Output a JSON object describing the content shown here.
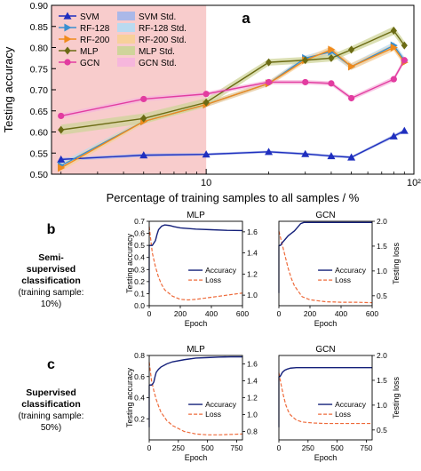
{
  "panel_a": {
    "letter": "a",
    "ylabel": "Testing accuracy",
    "xlabel": "Percentage of training samples to all samples / %",
    "legend": [
      {
        "label": "SVM",
        "kind": "line",
        "color": "#1f2fbf",
        "marker": "triangle-up"
      },
      {
        "label": "SVM Std.",
        "kind": "band",
        "color": "#aab8e8"
      },
      {
        "label": "RF-128",
        "kind": "line",
        "color": "#3a8fd0",
        "marker": "triangle-right"
      },
      {
        "label": "RF-128 Std.",
        "kind": "band",
        "color": "#b9daf0"
      },
      {
        "label": "RF-200",
        "kind": "line",
        "color": "#f08a1c",
        "marker": "triangle-right"
      },
      {
        "label": "RF-200 Std.",
        "kind": "band",
        "color": "#f8d09a"
      },
      {
        "label": "MLP",
        "kind": "line",
        "color": "#6b6b14",
        "marker": "diamond"
      },
      {
        "label": "MLP Std.",
        "kind": "band",
        "color": "#cfd49a"
      },
      {
        "label": "GCN",
        "kind": "line",
        "color": "#e23ca0",
        "marker": "circle"
      },
      {
        "label": "GCN Std.",
        "kind": "band",
        "color": "#f6b6dc"
      }
    ]
  },
  "panel_b": {
    "letter": "b",
    "label_lines": [
      "Semi-",
      "supervised",
      "classification"
    ],
    "sub_lines": [
      "(training sample:",
      "10%)"
    ]
  },
  "panel_c": {
    "letter": "c",
    "label_lines": [
      "Supervised",
      "classification"
    ],
    "sub_lines": [
      "(training sample:",
      "50%)"
    ]
  },
  "small_common": {
    "ylabel_left": "Testing accuracy",
    "ylabel_right": "Testing loss",
    "xlabel": "Epoch",
    "legend_accuracy": "Accuracy",
    "legend_loss": "Loss",
    "acc_color": "#14207a",
    "loss_color": "#ee6a3a"
  },
  "chart_data": [
    {
      "type": "line",
      "id": "a",
      "xscale": "log",
      "xlim": [
        1.8,
        100
      ],
      "ylim": [
        0.5,
        0.9
      ],
      "xticks": [
        10,
        100
      ],
      "xtick_labels": [
        "10",
        "10²"
      ],
      "yticks": [
        0.5,
        0.55,
        0.6,
        0.65,
        0.7,
        0.75,
        0.8,
        0.85,
        0.9
      ],
      "ytick_labels": [
        "0.50",
        "0.55",
        "0.60",
        "0.65",
        "0.70",
        "0.75",
        "0.80",
        "0.85",
        "0.90"
      ],
      "highlight_region_x": [
        1.8,
        10
      ],
      "series": [
        {
          "name": "SVM",
          "x": [
            2,
            5,
            10,
            20,
            30,
            40,
            50,
            80,
            90
          ],
          "y": [
            0.535,
            0.545,
            0.547,
            0.553,
            0.548,
            0.543,
            0.54,
            0.59,
            0.603
          ],
          "std": [
            0.004,
            0.004,
            0.003,
            0.003,
            0.003,
            0.003,
            0.003,
            0.004,
            0.004
          ]
        },
        {
          "name": "RF-128",
          "x": [
            2,
            5,
            10,
            20,
            30,
            40,
            50,
            80,
            90
          ],
          "y": [
            0.52,
            0.625,
            0.665,
            0.715,
            0.775,
            0.79,
            0.755,
            0.805,
            0.77
          ],
          "std": [
            0.008,
            0.006,
            0.006,
            0.006,
            0.006,
            0.008,
            0.008,
            0.008,
            0.008
          ]
        },
        {
          "name": "RF-200",
          "x": [
            2,
            5,
            10,
            20,
            30,
            40,
            50,
            80,
            90
          ],
          "y": [
            0.515,
            0.625,
            0.665,
            0.715,
            0.77,
            0.795,
            0.755,
            0.8,
            0.765
          ],
          "std": [
            0.008,
            0.006,
            0.006,
            0.006,
            0.006,
            0.008,
            0.008,
            0.008,
            0.008
          ]
        },
        {
          "name": "MLP",
          "x": [
            2,
            5,
            10,
            20,
            30,
            40,
            50,
            80,
            90
          ],
          "y": [
            0.605,
            0.632,
            0.67,
            0.765,
            0.77,
            0.775,
            0.795,
            0.84,
            0.805
          ],
          "std": [
            0.012,
            0.012,
            0.01,
            0.008,
            0.008,
            0.008,
            0.008,
            0.01,
            0.01
          ]
        },
        {
          "name": "GCN",
          "x": [
            2,
            5,
            10,
            20,
            30,
            40,
            50,
            80,
            90
          ],
          "y": [
            0.638,
            0.678,
            0.69,
            0.718,
            0.718,
            0.715,
            0.68,
            0.725,
            0.77
          ],
          "std": [
            0.006,
            0.006,
            0.005,
            0.005,
            0.005,
            0.005,
            0.005,
            0.006,
            0.006
          ]
        }
      ]
    },
    {
      "type": "line",
      "id": "b-mlp",
      "title": "MLP",
      "xlim": [
        0,
        600
      ],
      "ylim_acc": [
        0,
        0.7
      ],
      "ylim_loss": [
        0.3,
        2.0
      ],
      "xticks": [
        0,
        200,
        400,
        600
      ],
      "yticks_acc": [
        0,
        0.1,
        0.2,
        0.3,
        0.4,
        0.5,
        0.6,
        0.7
      ],
      "yticks_loss": [],
      "yticks_loss_right": [
        1.0,
        1.2,
        1.4,
        1.6
      ],
      "loss_axis": [
        0.9,
        1.7
      ],
      "accuracy": {
        "x": [
          0,
          10,
          20,
          40,
          50,
          60,
          80,
          100,
          130,
          160,
          200,
          300,
          400,
          500,
          600
        ],
        "y": [
          0.5,
          0.5,
          0.5,
          0.54,
          0.59,
          0.63,
          0.66,
          0.67,
          0.665,
          0.655,
          0.645,
          0.635,
          0.63,
          0.625,
          0.623
        ]
      },
      "loss": {
        "x": [
          0,
          20,
          40,
          60,
          80,
          100,
          150,
          200,
          250,
          300,
          400,
          500,
          600
        ],
        "y": [
          1.65,
          1.4,
          1.27,
          1.17,
          1.1,
          1.05,
          0.99,
          0.96,
          0.955,
          0.96,
          0.98,
          1.0,
          1.02
        ]
      }
    },
    {
      "type": "line",
      "id": "b-gcn",
      "title": "GCN",
      "xlim": [
        0,
        600
      ],
      "ylim_acc": [
        0,
        0.7
      ],
      "xticks": [
        0,
        200,
        400,
        600
      ],
      "yticks_loss_right": [
        0.5,
        1.0,
        1.5,
        2.0
      ],
      "loss_axis": [
        0.3,
        2.0
      ],
      "accuracy": {
        "x": [
          0,
          10,
          20,
          40,
          60,
          80,
          100,
          120,
          140,
          160,
          200,
          300,
          400,
          500,
          600
        ],
        "y": [
          0.5,
          0.5,
          0.52,
          0.55,
          0.58,
          0.6,
          0.62,
          0.65,
          0.68,
          0.69,
          0.69,
          0.69,
          0.69,
          0.69,
          0.69
        ]
      },
      "loss": {
        "x": [
          0,
          20,
          40,
          60,
          80,
          100,
          150,
          200,
          250,
          300,
          400,
          500,
          600
        ],
        "y": [
          1.8,
          1.55,
          1.3,
          1.05,
          0.85,
          0.7,
          0.48,
          0.42,
          0.4,
          0.38,
          0.37,
          0.37,
          0.36
        ]
      }
    },
    {
      "type": "line",
      "id": "c-mlp",
      "title": "MLP",
      "xlim": [
        0,
        800
      ],
      "ylim_acc": [
        0,
        0.8
      ],
      "xticks": [
        0,
        250,
        500,
        750
      ],
      "yticks_acc": [
        0.2,
        0.4,
        0.6,
        0.8
      ],
      "yticks_loss_right": [
        0.8,
        1.0,
        1.2,
        1.4,
        1.6
      ],
      "loss_axis": [
        0.7,
        1.7
      ],
      "accuracy": {
        "x": [
          0,
          10,
          20,
          30,
          40,
          50,
          60,
          80,
          100,
          150,
          200,
          300,
          400,
          500,
          600,
          700,
          800
        ],
        "y": [
          0.52,
          0.52,
          0.52,
          0.53,
          0.55,
          0.6,
          0.64,
          0.67,
          0.69,
          0.72,
          0.74,
          0.76,
          0.775,
          0.78,
          0.785,
          0.787,
          0.787
        ]
      },
      "loss": {
        "x": [
          0,
          20,
          40,
          60,
          80,
          100,
          150,
          200,
          300,
          400,
          500,
          600,
          700,
          800
        ],
        "y": [
          1.62,
          1.4,
          1.28,
          1.18,
          1.1,
          1.03,
          0.93,
          0.87,
          0.8,
          0.77,
          0.76,
          0.76,
          0.765,
          0.77
        ]
      }
    },
    {
      "type": "line",
      "id": "c-gcn",
      "title": "GCN",
      "xlim": [
        0,
        800
      ],
      "ylim_acc": [
        0,
        0.8
      ],
      "xticks": [
        0,
        250,
        500,
        750
      ],
      "yticks_loss_right": [
        0.5,
        1.0,
        1.5,
        2.0
      ],
      "loss_axis": [
        0.3,
        2.0
      ],
      "accuracy": {
        "x": [
          0,
          10,
          20,
          30,
          50,
          70,
          100,
          150,
          200,
          300,
          400,
          500,
          600,
          700,
          800
        ],
        "y": [
          0.6,
          0.6,
          0.62,
          0.64,
          0.66,
          0.67,
          0.68,
          0.685,
          0.685,
          0.685,
          0.685,
          0.685,
          0.685,
          0.685,
          0.685
        ]
      },
      "loss": {
        "x": [
          0,
          20,
          40,
          60,
          80,
          100,
          150,
          200,
          300,
          400,
          500,
          600,
          700,
          800
        ],
        "y": [
          1.65,
          1.4,
          1.18,
          1.0,
          0.88,
          0.8,
          0.7,
          0.66,
          0.64,
          0.63,
          0.63,
          0.63,
          0.63,
          0.63
        ]
      }
    }
  ]
}
